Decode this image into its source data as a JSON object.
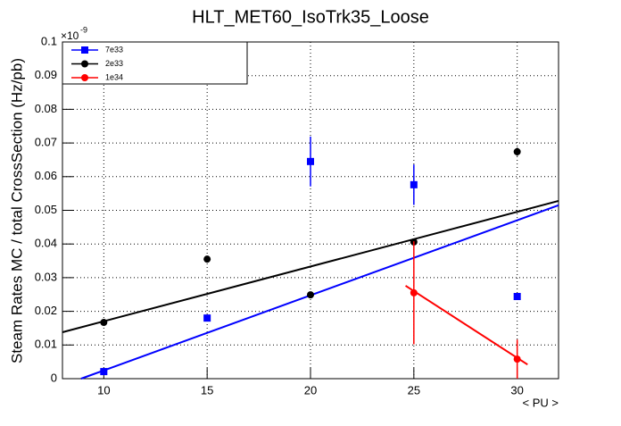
{
  "chart_data": {
    "type": "scatter",
    "title": "HLT_MET60_IsoTrk35_Loose",
    "y_label": "Steam Rates MC / total CrossSection (Hz/pb)",
    "x_label": "< PU >",
    "y_multiplier_base": "×10",
    "y_multiplier_exponent": "-9",
    "xlim": [
      8,
      32
    ],
    "ylim": [
      0,
      0.1
    ],
    "xticks": [
      10,
      15,
      20,
      25,
      30
    ],
    "yticks": [
      0,
      0.01,
      0.02,
      0.03,
      0.04,
      0.05,
      0.06,
      0.07,
      0.08,
      0.09,
      0.1
    ],
    "grid": true,
    "legend": "top-left",
    "series": [
      {
        "name": "7e33",
        "color": "#0000ff",
        "marker": "square",
        "x": [
          10,
          15,
          20,
          25,
          30
        ],
        "values": [
          0.0021,
          0.018,
          0.0645,
          0.0576,
          0.0244
        ],
        "errors": [
          0.0005,
          0.0006,
          0.0074,
          0.006,
          0.0006
        ],
        "fit": {
          "x": [
            8.9,
            32
          ],
          "values": [
            0,
            0.0515
          ]
        }
      },
      {
        "name": "2e33",
        "color": "#000000",
        "marker": "circle",
        "x": [
          10,
          15,
          20,
          25,
          30
        ],
        "values": [
          0.0167,
          0.0355,
          0.0249,
          0.0406,
          0.0674
        ],
        "errors": [
          0.0005,
          0.0005,
          0.0005,
          0.0008,
          0.0012
        ],
        "fit": {
          "x": [
            8,
            32
          ],
          "values": [
            0.0138,
            0.0528
          ]
        }
      },
      {
        "name": "1e34",
        "color": "#ff0000",
        "marker": "circle",
        "x": [
          25,
          30
        ],
        "values": [
          0.0255,
          0.0058
        ],
        "errors": [
          0.0153,
          0.0058
        ],
        "fit": {
          "x": [
            24.6,
            30.5
          ],
          "values": [
            0.0276,
            0.0042
          ]
        }
      }
    ]
  }
}
